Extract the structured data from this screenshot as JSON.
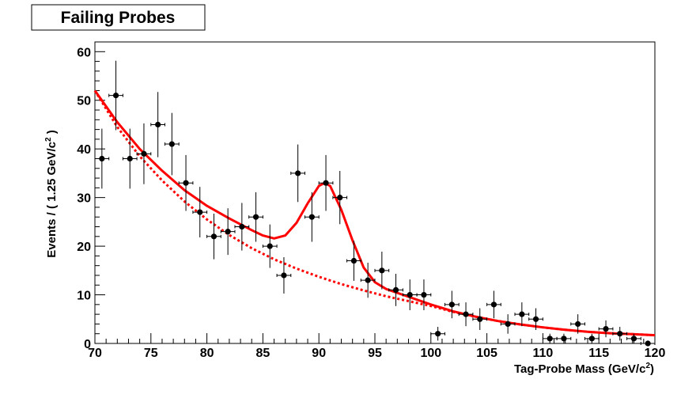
{
  "chart_data": {
    "type": "scatter",
    "title": "Failing Probes",
    "xlabel_main": "Tag-Probe Mass (GeV/c",
    "xlabel_sup": "2",
    "xlabel_close": ")",
    "ylabel_main": "Events / ( 1.25 GeV/c",
    "ylabel_sup": "2",
    "ylabel_close": " )",
    "xlim": [
      70,
      120
    ],
    "ylim": [
      0,
      62
    ],
    "x_ticks": [
      70,
      75,
      80,
      85,
      90,
      95,
      100,
      105,
      110,
      115,
      120
    ],
    "y_ticks": [
      0,
      10,
      20,
      30,
      40,
      50,
      60
    ],
    "grid": false,
    "legend": "none",
    "bin_width": 1.25,
    "series": [
      {
        "type": "points_with_errors",
        "color": "#000000",
        "x": [
          70.625,
          71.875,
          73.125,
          74.375,
          75.625,
          76.875,
          78.125,
          79.375,
          80.625,
          81.875,
          83.125,
          84.375,
          85.625,
          86.875,
          88.125,
          89.375,
          90.625,
          91.875,
          93.125,
          94.375,
          95.625,
          96.875,
          98.125,
          99.375,
          100.625,
          101.875,
          103.125,
          104.375,
          105.625,
          106.875,
          108.125,
          109.375,
          110.625,
          111.875,
          113.125,
          114.375,
          115.625,
          116.875,
          118.125,
          119.375
        ],
        "y": [
          38,
          51,
          38,
          39,
          45,
          41,
          33,
          27,
          22,
          23,
          24,
          26,
          20,
          14,
          35,
          26,
          33,
          30,
          17,
          13,
          15,
          11,
          10,
          10,
          2,
          8,
          6,
          5,
          8,
          4,
          6,
          5,
          1,
          1,
          4,
          1,
          3,
          2,
          1,
          0
        ]
      },
      {
        "type": "total_fit",
        "color": "#ff0000",
        "line_style": "solid",
        "x": [
          70,
          72,
          74,
          76,
          78,
          80,
          82,
          84,
          85,
          86,
          87,
          88,
          89,
          90,
          90.5,
          91,
          92,
          93,
          94,
          95,
          96,
          98,
          100,
          102,
          104,
          106,
          108,
          110,
          112,
          114,
          116,
          118,
          120
        ],
        "y": [
          52,
          45.5,
          40,
          35.5,
          31.5,
          28.3,
          25.7,
          23.3,
          22.2,
          21.6,
          22.2,
          24.8,
          28.8,
          32.4,
          33.0,
          32.4,
          27.5,
          21.2,
          15.6,
          12.6,
          11.2,
          9.6,
          8.0,
          6.6,
          5.5,
          4.6,
          3.9,
          3.3,
          2.8,
          2.4,
          2.1,
          1.9,
          1.7
        ]
      },
      {
        "type": "background_fit",
        "color": "#ff0000",
        "line_style": "dotted",
        "x": [
          70,
          72,
          74,
          76,
          78,
          80,
          82,
          84,
          86,
          88,
          90,
          92,
          94,
          96,
          98,
          100,
          102,
          104,
          106,
          108,
          110,
          112,
          114,
          116,
          118,
          120
        ],
        "y": [
          52,
          44.5,
          38.5,
          33.5,
          29.2,
          25.5,
          22.3,
          19.6,
          17.3,
          15.4,
          13.7,
          12.2,
          10.9,
          9.7,
          8.7,
          7.7,
          6.5,
          5.5,
          4.6,
          3.9,
          3.3,
          2.8,
          2.4,
          2.1,
          1.9,
          1.7
        ]
      }
    ]
  }
}
